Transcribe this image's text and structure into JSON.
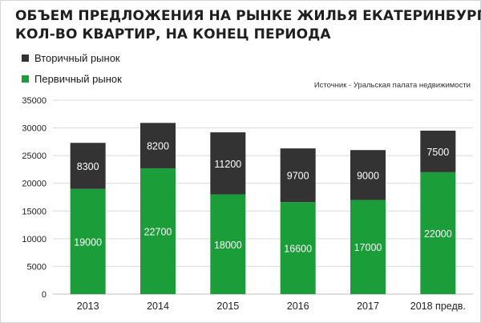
{
  "chart_data": {
    "type": "bar",
    "stacked": true,
    "title_lines": [
      "ОБЪЕМ ПРЕДЛОЖЕНИЯ НА РЫНКЕ ЖИЛЬЯ ЕКАТЕРИНБУРГА,",
      "КОЛ-ВО КВАРТИР, НА КОНЕЦ ПЕРИОДА"
    ],
    "source": "Источник - Уральская палата недвижимости",
    "categories": [
      "2013",
      "2014",
      "2015",
      "2016",
      "2017",
      "2018 предв."
    ],
    "series": [
      {
        "name": "Первичный рынок",
        "color": "#1b9e3a",
        "label_color": "#ffffff",
        "values": [
          19000,
          22700,
          18000,
          16600,
          17000,
          22000
        ]
      },
      {
        "name": "Вторичный рынок",
        "color": "#333333",
        "label_color": "#ffffff",
        "values": [
          8300,
          8200,
          11200,
          9700,
          9000,
          7500
        ]
      }
    ],
    "legend_order": [
      1,
      0
    ],
    "legend_position": "top-left",
    "ylim": [
      0,
      35000
    ],
    "yticks": [
      0,
      5000,
      10000,
      15000,
      20000,
      25000,
      30000,
      35000
    ],
    "grid": true
  }
}
